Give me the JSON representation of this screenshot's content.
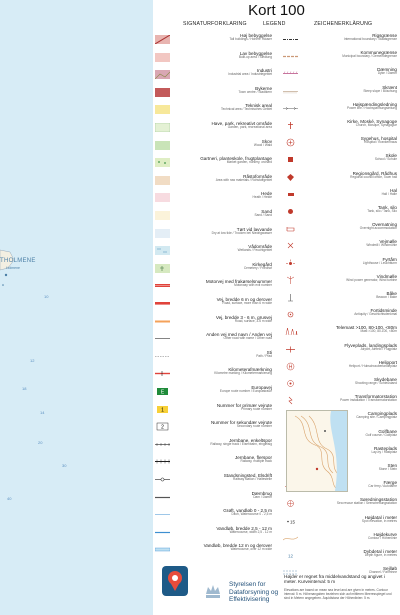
{
  "title": "Kort 100",
  "subtitle": {
    "left": "SIGNATURFORKLARING",
    "middle": "LEGEND",
    "right": "ZEICHENERKLÄRUNG"
  },
  "colors": {
    "sea": "#d7ecf6",
    "sea_text": "#4b7fa6",
    "forest": "#c9e4b8",
    "building_red": "#c0392b",
    "road_red": "#e0433b",
    "water_blue": "#3d8fd1",
    "agency_blue": "#1e5a87"
  },
  "map": {
    "place_name": "THOLMENE",
    "place_sub": "Holmene",
    "depth_numbers": [
      "10",
      "12",
      "14",
      "20",
      "30",
      "40",
      "18"
    ]
  },
  "left_items": [
    {
      "label": "Høj bebyggelse",
      "sub": "Tall buildings / Hohere Häuser",
      "icon": "high-building-icon"
    },
    {
      "label": "Lav bebyggelse",
      "sub": "Built-up area / Siedlung",
      "icon": "low-building-icon"
    },
    {
      "label": "Industri",
      "sub": "Industrial area / Industriegebiet",
      "icon": "industry-icon"
    },
    {
      "label": "Bykerne",
      "sub": "Town centre / Stadtkern",
      "icon": "town-centre-icon"
    },
    {
      "label": "Teknisk areal",
      "sub": "Technical area / Technisches Gebiet",
      "icon": "technical-area-icon"
    },
    {
      "label": "Have, park, rekreativt område",
      "sub": "Garden, park, recreational area",
      "icon": "park-icon"
    },
    {
      "label": "Skov",
      "sub": "Wood / Wald",
      "icon": "forest-icon"
    },
    {
      "label": "Gartneri, planteskole, frugtplantage",
      "sub": "Market garden, nursery, orchard",
      "icon": "nursery-icon"
    },
    {
      "label": "Råstofområde",
      "sub": "Area with raw materials / Rohstoffgebiet",
      "icon": "raw-material-icon"
    },
    {
      "label": "Hede",
      "sub": "Heath / Heide",
      "icon": "heath-icon"
    },
    {
      "label": "Sand",
      "sub": "Sand / Sand",
      "icon": "sand-icon"
    },
    {
      "label": "Tørt vid lavvande",
      "sub": "Dry at low tide / Trocken bei Niedrigwasser",
      "icon": "low-tide-icon"
    },
    {
      "label": "Vådområde",
      "sub": "Wetlands / Feuchtgebiet",
      "icon": "wetland-icon"
    },
    {
      "label": "Kirkegård",
      "sub": "Cemetery / Friedhof",
      "icon": "cemetery-icon"
    },
    {
      "label": "Motorvej med frakørselsnummer",
      "sub": "Motorway with exit number",
      "icon": "motorway-icon"
    },
    {
      "label": "Vej, bredde 6 m og derover",
      "sub": "Road, surface, more than 6 m wide",
      "icon": "road-wide-icon"
    },
    {
      "label": "Vej, bredde 3 - 6 m, grusvej",
      "sub": "Road, surface, 3-6 m wide",
      "icon": "road-medium-icon"
    },
    {
      "label": "Anden vej med navn / Anden vej",
      "sub": "Other road with name / Other road",
      "icon": "other-road-icon"
    },
    {
      "label": "Sti",
      "sub": "Path / Pfad",
      "icon": "path-icon"
    },
    {
      "label": "Kilometerafmærkning",
      "sub": "Kilometre marking / Kilometermarkierung",
      "icon": "kilometre-marking-icon"
    },
    {
      "label": "Europavej",
      "sub": "Europe route number / Europastraße",
      "icon": "europe-route-icon"
    },
    {
      "label": "Nummer for primær vejrute",
      "sub": "Primary route number",
      "icon": "primary-route-icon"
    },
    {
      "label": "Nummer for sekundær vejrute",
      "sub": "Secondary route number",
      "icon": "secondary-route-icon"
    },
    {
      "label": "Jernbane, enkeltspor",
      "sub": "Railway, single track / Eisenbahn, eingleisig",
      "icon": "railway-single-icon"
    },
    {
      "label": "Jernbane, flerspor",
      "sub": "Railway, multiple track",
      "icon": "railway-multiple-icon"
    },
    {
      "label": "Standsningsted, Elsdrift",
      "sub": "Railway station / Haltestelle",
      "icon": "station-icon"
    },
    {
      "label": "Dæmbrug",
      "sub": "Dam / Damm",
      "icon": "dam-icon"
    },
    {
      "label": "Grøft, vandløb 0 - 2,5 m",
      "sub": "Ditch, Watercourse 0 - 2,5 m",
      "icon": "ditch-icon"
    },
    {
      "label": "Vandløb, bredde 2,5 - 12 m",
      "sub": "Watercourse, width 2,5 - 12 m",
      "icon": "watercourse-medium-icon"
    },
    {
      "label": "Vandløb, bredde 12 m og derover",
      "sub": "Watercourse, over 12 m wide",
      "icon": "watercourse-wide-icon"
    }
  ],
  "right_items": [
    {
      "label": "Rigsgrænse",
      "sub": "International boundary / Staatsgrenze",
      "icon": "international-boundary-icon"
    },
    {
      "label": "Kommunegrænse",
      "sub": "Municipal boundary / Gemeindegrenze",
      "icon": "municipal-boundary-icon"
    },
    {
      "label": "Dæmning",
      "sub": "Dyke / Damm",
      "icon": "dyke-icon"
    },
    {
      "label": "Skrænt",
      "sub": "Steep slope / Böschung",
      "icon": "slope-icon"
    },
    {
      "label": "Højspændingsledning",
      "sub": "Power line / Hochspannungsleitung",
      "icon": "power-line-icon"
    },
    {
      "label": "Kirke, Moské, Synagoge",
      "sub": "Church, Mosque, Synagogue",
      "icon": "church-icon"
    },
    {
      "label": "Sygehus, hospital",
      "sub": "Hospital / Krankenhaus",
      "icon": "hospital-icon"
    },
    {
      "label": "Skole",
      "sub": "School / Schule",
      "icon": "school-icon"
    },
    {
      "label": "Regionsgård, Rådhus",
      "sub": "Regional council office, Town hall",
      "icon": "town-hall-icon"
    },
    {
      "label": "Hal",
      "sub": "Hall / Halle",
      "icon": "hall-icon"
    },
    {
      "label": "Tank, silo",
      "sub": "Tank, silo / Tank, Silo",
      "icon": "tank-icon"
    },
    {
      "label": "Overnatning",
      "sub": "Overnight accommodation",
      "icon": "accommodation-icon"
    },
    {
      "label": "Vejmølle",
      "sub": "Windmill / Windmühle",
      "icon": "windmill-icon"
    },
    {
      "label": "Fyrtårn",
      "sub": "Lighthouse / Leuchtturm",
      "icon": "lighthouse-icon"
    },
    {
      "label": "Vindmølle",
      "sub": "Wind power generator, Wind turbine",
      "icon": "wind-turbine-icon"
    },
    {
      "label": "Båke",
      "sub": "Beacon / Bake",
      "icon": "beacon-icon"
    },
    {
      "label": "Fortidsminde",
      "sub": "Antiquity / Geschichtsdenkmal",
      "icon": "antiquity-icon"
    },
    {
      "label": "Telemast >100, 80-100, <80m",
      "sub": "Mast >100, 80-100, <80m",
      "icon": "mast-icon"
    },
    {
      "label": "Flyveplads, landingsplads",
      "sub": "Airport, Airfield / Flugplatz",
      "icon": "airport-icon"
    },
    {
      "label": "Helipport",
      "sub": "Heliport / Hubschrauberlandeplatz",
      "icon": "heliport-icon"
    },
    {
      "label": "Skydebane",
      "sub": "Shooting range / Schießstand",
      "icon": "shooting-range-icon"
    },
    {
      "label": "Transformatorstation",
      "sub": "Power installation / Transformatorstation",
      "icon": "transformer-icon"
    },
    {
      "label": "Campingplads",
      "sub": "Camping site / Campingplatz",
      "icon": "camping-icon"
    },
    {
      "label": "Golfbane",
      "sub": "Golf course / Golfplatz",
      "icon": "golf-icon"
    },
    {
      "label": "Rasteplads",
      "sub": "Lay-by / Rastplatz",
      "icon": "lay-by-icon"
    },
    {
      "label": "Sten",
      "sub": "Stone / Stein",
      "icon": "stone-icon"
    },
    {
      "label": "Færge",
      "sub": "Car ferry / Autofähre",
      "icon": "ferry-icon"
    },
    {
      "label": "Søredningsstation",
      "sub": "Sea rescue station / Seenotrettungsstation",
      "icon": "sea-rescue-icon"
    },
    {
      "label": "Højdatal i meter",
      "sub": "Spot elevation, in metres",
      "icon": "spot-elevation-icon"
    },
    {
      "label": "Højdekurve",
      "sub": "Contour / Höhenlinie",
      "icon": "contour-icon"
    },
    {
      "label": "Dybdetal i meter",
      "sub": "Depth figure, in metres",
      "icon": "depth-figure-icon"
    },
    {
      "label": "Sejlløb",
      "sub": "Channel / Fahrrinne",
      "icon": "channel-icon"
    }
  ],
  "note": {
    "main": "Højder er regnet fra middelvandstand og angivet i meter. Kurveinterval: 5 m",
    "sub": "Elevations are based on mean sea level and are given in metres. Contour interval: 5 m. Höhenangaben beziehen sich auf mittleren Meeresspiegel und sind in Metern angegeben. Äquidistanz der Höhenlinien: 5 m."
  },
  "agency": {
    "line1": "Styrelsen for",
    "line2": "Dataforsyning og",
    "line3": "Effektivisering"
  }
}
